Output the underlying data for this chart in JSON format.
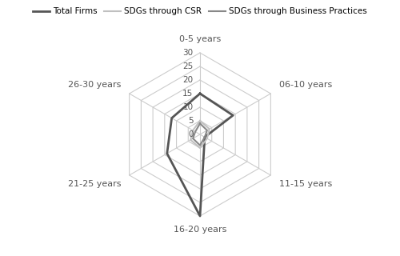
{
  "categories": [
    "0-5 years",
    "06-10 years",
    "11-15 years",
    "16-20 years",
    "21-25 years",
    "26-30 years"
  ],
  "series": {
    "Total Firms": [
      15,
      14,
      2,
      30,
      14,
      12
    ],
    "SDGs through CSR": [
      5,
      4,
      3,
      5,
      4,
      3
    ],
    "SDGs through Business Practices": [
      4,
      3,
      2,
      4,
      3,
      2
    ]
  },
  "colors": {
    "Total Firms": "#555555",
    "SDGs through CSR": "#c0c0c0",
    "SDGs through Business Practices": "#888888"
  },
  "linewidths": {
    "Total Firms": 2.0,
    "SDGs through CSR": 1.5,
    "SDGs through Business Practices": 1.5
  },
  "r_max": 30,
  "r_ticks": [
    0,
    5,
    10,
    15,
    20,
    25,
    30
  ],
  "grid_color": "#cccccc",
  "grid_linewidth": 0.8,
  "background_color": "#ffffff",
  "legend_order": [
    "Total Firms",
    "SDGs through CSR",
    "SDGs through Business Practices"
  ],
  "label_fontsize": 8,
  "tick_fontsize": 7.5
}
